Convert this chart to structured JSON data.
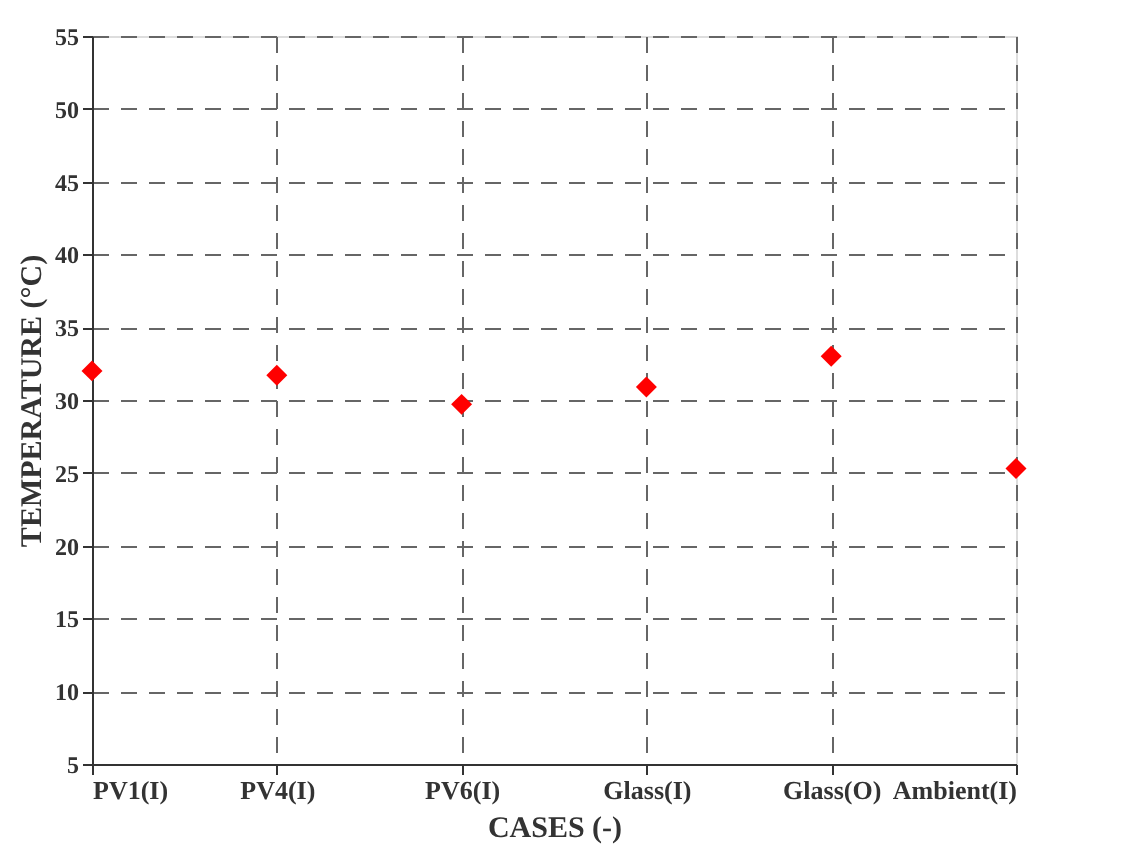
{
  "chart_data": {
    "type": "scatter",
    "xlabel": "CASES (-)",
    "ylabel": "TEMPERATURE (°C)",
    "categories": [
      "PV1(I)",
      "PV4(I)",
      "PV6(I)",
      "Glass(I)",
      "Glass(O)",
      "Ambient(I)"
    ],
    "series": [
      {
        "color": "#ff0000",
        "values": [
          32.0,
          31.7,
          29.7,
          30.9,
          33.0,
          25.3
        ]
      }
    ],
    "ylim": [
      5,
      55
    ],
    "yticks": [
      5,
      10,
      15,
      20,
      25,
      30,
      35,
      40,
      45,
      50,
      55
    ],
    "grid": true,
    "marker": "diamond"
  }
}
